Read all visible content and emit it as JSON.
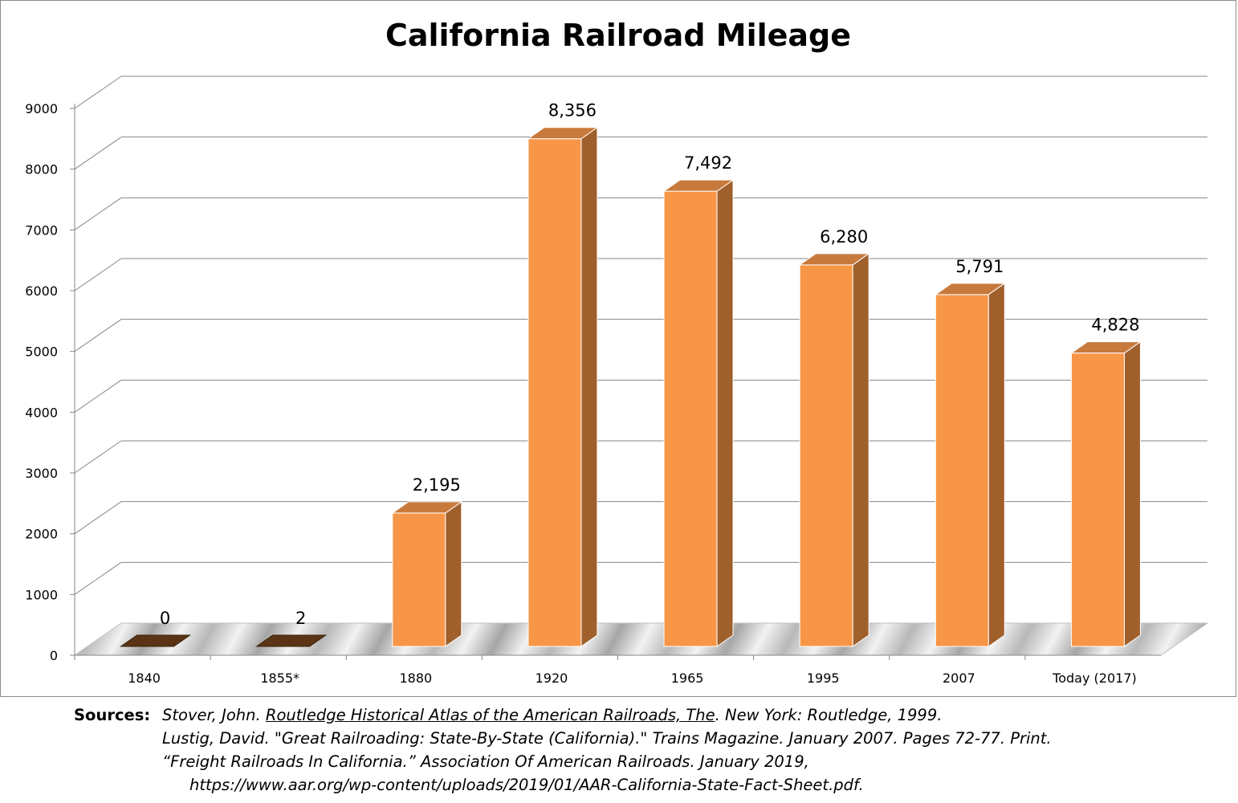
{
  "chart_data": {
    "type": "bar",
    "title": "California Railroad Mileage",
    "categories": [
      "1840",
      "1855*",
      "1880",
      "1920",
      "1965",
      "1995",
      "2007",
      "Today  (2017)"
    ],
    "values": [
      0,
      2,
      2195,
      8356,
      7492,
      6280,
      5791,
      4828
    ],
    "data_labels": [
      "0",
      "2",
      "2,195",
      "8,356",
      "7,492",
      "6,280",
      "5,791",
      "4,828"
    ],
    "yticks": [
      "0",
      "1000",
      "2000",
      "3000",
      "4000",
      "5000",
      "6000",
      "7000",
      "8000",
      "9000"
    ],
    "ylim": [
      0,
      9000
    ],
    "xlabel": "",
    "ylabel": "",
    "grid": true,
    "style": "3d-column",
    "colors": {
      "front": "#F79646",
      "side": "#A0602C",
      "top": "#C87A3C",
      "floor": "#D9D9D9",
      "grid": "#868686"
    }
  },
  "sources": {
    "label": "Sources:",
    "ref1_pre": "Stover, John. ",
    "ref1_title": "Routledge Historical Atlas of the American Railroads, The",
    "ref1_post": ". New York: Routledge, 1999.",
    "ref2": "Lustig, David. \"Great Railroading: State-By-State (California).\" Trains Magazine. January 2007. Pages 72-77. Print.",
    "ref3": "“Freight Railroads In California.” Association Of American Railroads. January 2019,",
    "ref4": "https://www.aar.org/wp-content/uploads/2019/01/AAR-California-State-Fact-Sheet.pdf."
  }
}
